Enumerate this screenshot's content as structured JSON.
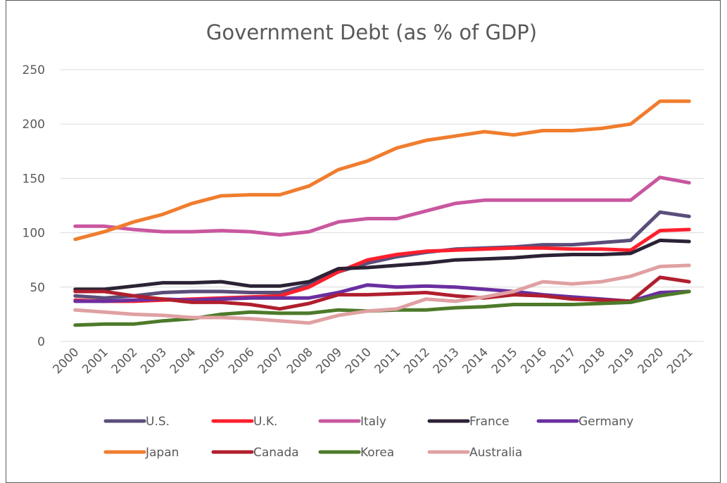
{
  "chart_data": {
    "type": "line",
    "title": "Government Debt (as % of GDP)",
    "xlabel": "",
    "ylabel": "",
    "ylim": [
      0,
      250
    ],
    "yticks": [
      0,
      50,
      100,
      150,
      200,
      250
    ],
    "grid": true,
    "legend_position": "bottom",
    "x": [
      "2000",
      "2001",
      "2002",
      "2003",
      "2004",
      "2005",
      "2006",
      "2007",
      "2008",
      "2009",
      "2010",
      "2011",
      "2012",
      "2013",
      "2014",
      "2015",
      "2016",
      "2017",
      "2018",
      "2019",
      "2020",
      "2021"
    ],
    "series": [
      {
        "name": "U.S.",
        "color": "#5b4e7a",
        "values": [
          42,
          40,
          42,
          45,
          46,
          46,
          45,
          45,
          52,
          64,
          72,
          78,
          82,
          85,
          86,
          87,
          89,
          89,
          91,
          93,
          119,
          115
        ]
      },
      {
        "name": "U.K.",
        "color": "#ff1f2d",
        "values": [
          38,
          37,
          37,
          38,
          39,
          40,
          41,
          42,
          50,
          64,
          75,
          80,
          83,
          84,
          85,
          86,
          86,
          85,
          85,
          84,
          102,
          103
        ]
      },
      {
        "name": "Italy",
        "color": "#c9579f",
        "values": [
          106,
          106,
          103,
          101,
          101,
          102,
          101,
          98,
          101,
          110,
          113,
          113,
          120,
          127,
          130,
          130,
          130,
          130,
          130,
          130,
          151,
          146
        ]
      },
      {
        "name": "France",
        "color": "#2c2235",
        "values": [
          48,
          48,
          51,
          54,
          54,
          55,
          51,
          51,
          55,
          67,
          68,
          70,
          72,
          75,
          76,
          77,
          79,
          80,
          80,
          81,
          93,
          92
        ]
      },
      {
        "name": "Germany",
        "color": "#6a2fa0",
        "values": [
          37,
          37,
          38,
          39,
          38,
          39,
          40,
          40,
          40,
          45,
          52,
          50,
          51,
          50,
          48,
          46,
          43,
          41,
          39,
          37,
          45,
          46
        ]
      },
      {
        "name": "Japan",
        "color": "#f07d2e",
        "values": [
          94,
          101,
          110,
          117,
          127,
          134,
          135,
          135,
          143,
          158,
          166,
          178,
          185,
          189,
          193,
          190,
          194,
          194,
          196,
          200,
          221,
          221
        ]
      },
      {
        "name": "Canada",
        "color": "#b01f2e",
        "values": [
          46,
          46,
          42,
          39,
          36,
          36,
          34,
          30,
          35,
          43,
          43,
          44,
          45,
          42,
          40,
          43,
          42,
          39,
          38,
          37,
          59,
          55
        ]
      },
      {
        "name": "Korea",
        "color": "#4d7a2a",
        "values": [
          15,
          16,
          16,
          19,
          21,
          25,
          27,
          26,
          26,
          29,
          28,
          29,
          29,
          31,
          32,
          34,
          34,
          34,
          35,
          36,
          42,
          46
        ]
      },
      {
        "name": "Australia",
        "color": "#e0a0a2",
        "values": [
          29,
          27,
          25,
          24,
          22,
          22,
          21,
          19,
          17,
          24,
          28,
          30,
          39,
          37,
          41,
          46,
          55,
          53,
          55,
          60,
          69,
          70
        ]
      }
    ]
  }
}
